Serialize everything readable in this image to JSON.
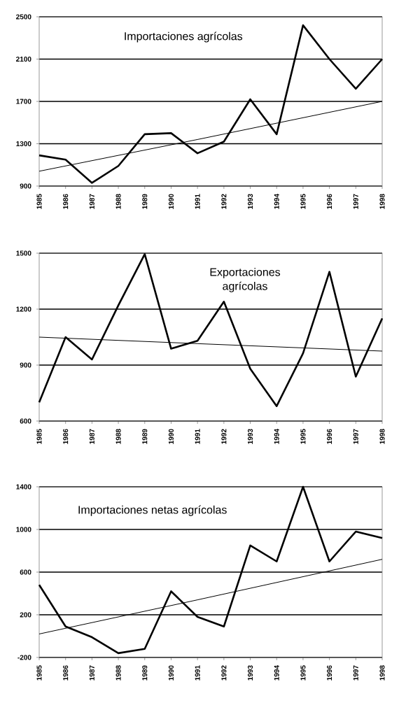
{
  "chart_data": [
    {
      "type": "line",
      "title": "Importaciones agrícolas",
      "x": [
        1985,
        1986,
        1987,
        1988,
        1989,
        1990,
        1991,
        1992,
        1993,
        1994,
        1995,
        1996,
        1997,
        1998
      ],
      "xlim": [
        1985,
        1998
      ],
      "xticks": [
        1985,
        1986,
        1987,
        1988,
        1989,
        1990,
        1991,
        1992,
        1993,
        1994,
        1995,
        1996,
        1997,
        1998
      ],
      "ylim": [
        900,
        2500
      ],
      "yticks": [
        900,
        1300,
        1700,
        2100,
        2500
      ],
      "grid": "y",
      "marker": "none",
      "line_style": "solid",
      "series": [
        {
          "color": "#000000",
          "values": [
            1190,
            1150,
            930,
            1090,
            1390,
            1400,
            1210,
            1320,
            1720,
            1390,
            2420,
            2100,
            1820,
            2100
          ]
        },
        {
          "type": "line",
          "color": "#000000",
          "x": [
            1985,
            1991,
            1998
          ],
          "values": [
            1040,
            1340,
            1700
          ]
        }
      ]
    },
    {
      "type": "line",
      "title": "Exportaciones agrícolas",
      "x": [
        1985,
        1986,
        1987,
        1988,
        1989,
        1990,
        1991,
        1992,
        1993,
        1994,
        1995,
        1996,
        1997,
        1998
      ],
      "xlim": [
        1985,
        1998
      ],
      "xticks": [
        1985,
        1986,
        1987,
        1988,
        1989,
        1990,
        1991,
        1992,
        1993,
        1994,
        1995,
        1996,
        1997,
        1998
      ],
      "ylim": [
        600,
        1500
      ],
      "yticks": [
        600,
        900,
        1200,
        1500
      ],
      "grid": "y",
      "marker": "none",
      "line_style": "solid",
      "series": [
        {
          "color": "#000000",
          "values": [
            700,
            1050,
            930,
            1220,
            1495,
            988,
            1030,
            1240,
            880,
            680,
            963,
            1400,
            838,
            1150
          ]
        },
        {
          "type": "line",
          "color": "#000000",
          "x": [
            1985,
            1991,
            1998
          ],
          "values": [
            1050,
            1015,
            975
          ]
        }
      ]
    },
    {
      "type": "line",
      "title": "Importaciones netas agrícolas",
      "x": [
        1985,
        1986,
        1987,
        1988,
        1989,
        1990,
        1991,
        1992,
        1993,
        1994,
        1995,
        1996,
        1997,
        1998
      ],
      "xlim": [
        1985,
        1998
      ],
      "xticks": [
        1985,
        1986,
        1987,
        1988,
        1989,
        1990,
        1991,
        1992,
        1993,
        1994,
        1995,
        1996,
        1997,
        1998
      ],
      "ylim": [
        -200,
        1400
      ],
      "yticks": [
        -200,
        200,
        600,
        1000,
        1400
      ],
      "grid": "y",
      "marker": "none",
      "line_style": "solid",
      "series": [
        {
          "color": "#000000",
          "values": [
            480,
            90,
            -10,
            -160,
            -120,
            420,
            180,
            90,
            850,
            700,
            1400,
            700,
            980,
            920
          ]
        },
        {
          "type": "line",
          "color": "#000000",
          "x": [
            1985,
            1991,
            1998
          ],
          "values": [
            20,
            340,
            720
          ]
        }
      ]
    }
  ]
}
